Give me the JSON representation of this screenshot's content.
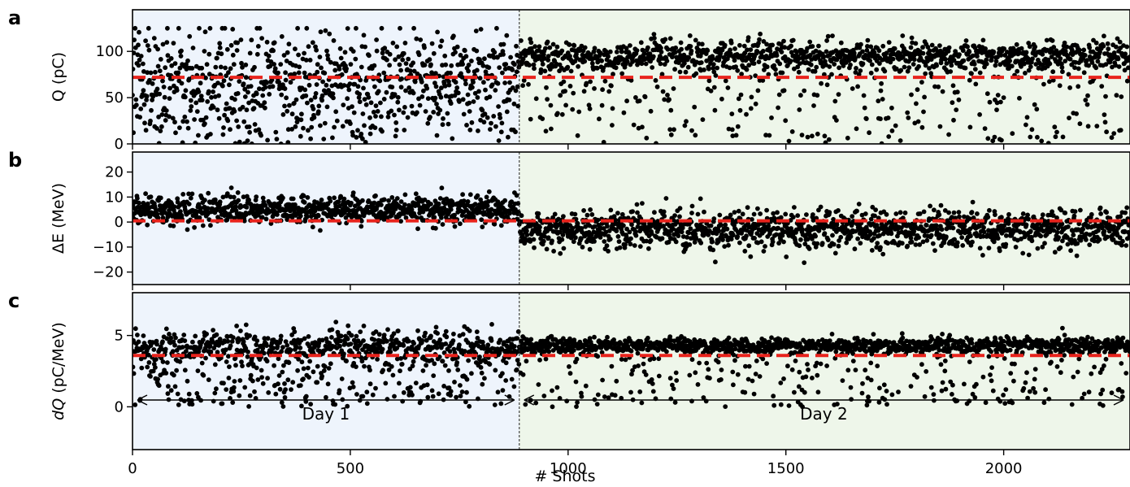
{
  "chart_data": {
    "type": "scatter",
    "x_range": [
      0,
      2290
    ],
    "x_ticks": [
      0,
      500,
      1000,
      1500,
      2000
    ],
    "xlabel": "# Shots",
    "split_x": 888,
    "n_points": 2290,
    "point_color": "#000000",
    "mean_line_color": "#e8231c",
    "day_labels": [
      "Day 1",
      "Day 2"
    ],
    "day_colors": [
      "#eef4fc",
      "#eef6ea"
    ],
    "panels": [
      {
        "letter": "a",
        "ylabel": "Q (pC)",
        "ylim": [
          0,
          145
        ],
        "yticks": [
          0,
          50,
          100
        ],
        "mean_line": 72,
        "day1": {
          "center": 75,
          "spread": 45,
          "low_fraction": 0.3
        },
        "day2": {
          "center": 95,
          "spread": 16,
          "low_fraction": 0.22
        }
      },
      {
        "letter": "b",
        "ylabel": "ΔE (MeV)",
        "ylim": [
          -25,
          28
        ],
        "yticks": [
          -20,
          -10,
          0,
          10,
          20
        ],
        "mean_line": 0.5,
        "day1": {
          "center": 5,
          "spread": 5,
          "low_fraction": 0
        },
        "day2": {
          "center": -3,
          "spread": 7,
          "low_fraction": 0
        }
      },
      {
        "letter": "c",
        "ylabel": "dQ (pC/MeV)",
        "ylim": [
          -3,
          8
        ],
        "yticks": [
          0,
          5
        ],
        "mean_line": 3.6,
        "day1": {
          "center": 4.2,
          "spread": 1.0,
          "low_fraction": 0.35
        },
        "day2": {
          "center": 4.3,
          "spread": 0.5,
          "low_fraction": 0.2
        }
      }
    ]
  }
}
